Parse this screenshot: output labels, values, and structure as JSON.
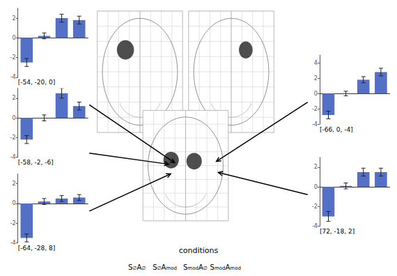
{
  "chart_data": [
    {
      "type": "bar",
      "title": "[-54, -20, 0]",
      "categories": [
        null,
        null,
        null,
        null
      ],
      "values": [
        -2.5,
        0.2,
        2.0,
        1.8
      ],
      "errors": [
        0.4,
        0.3,
        0.4,
        0.4
      ],
      "ylim": [
        -4,
        3
      ],
      "yticks": [
        -4,
        -2,
        0,
        2
      ],
      "grid": false,
      "tick_labels": "y",
      "annotations": [
        "conditions",
        "S∅A∅",
        "S∅Amod",
        "SmodA∅",
        "SmodAmod"
      ]
    },
    {
      "type": "bar",
      "title": "[-58, -2, -6]",
      "categories": [
        null,
        null,
        null,
        null
      ],
      "values": [
        -2.2,
        0.0,
        2.5,
        1.2
      ],
      "errors": [
        0.4,
        0.3,
        0.5,
        0.4
      ],
      "ylim": [
        -4,
        3
      ],
      "yticks": [
        -4,
        -2,
        0,
        2
      ],
      "grid": false,
      "tick_labels": "y"
    },
    {
      "type": "bar",
      "title": "[-64, -28, 8]",
      "categories": [
        null,
        null,
        null,
        null
      ],
      "values": [
        -3.5,
        0.2,
        0.5,
        0.6
      ],
      "errors": [
        0.4,
        0.3,
        0.3,
        0.3
      ],
      "ylim": [
        -4,
        3
      ],
      "yticks": [
        -4,
        -2,
        0,
        2
      ],
      "grid": false,
      "tick_labels": "y"
    },
    {
      "type": "bar",
      "title": "[-66, 0, -4]",
      "categories": [
        null,
        null,
        null,
        null
      ],
      "values": [
        -2.8,
        0.0,
        1.8,
        2.8
      ],
      "errors": [
        0.5,
        0.3,
        0.4,
        0.5
      ],
      "ylim": [
        -4,
        5
      ],
      "yticks": [
        -4,
        -2,
        0,
        2,
        4
      ],
      "grid": false,
      "tick_labels": "y"
    },
    {
      "type": "bar",
      "title": "[72, -18, 2]",
      "categories": [
        null,
        null,
        null,
        null
      ],
      "values": [
        -3.0,
        0.1,
        1.5,
        1.5
      ],
      "errors": [
        0.5,
        0.3,
        0.4,
        0.4
      ],
      "ylim": [
        -4,
        3
      ],
      "yticks": [
        -4,
        -2,
        0,
        2
      ],
      "grid": false,
      "tick_labels": "y"
    }
  ]
}
